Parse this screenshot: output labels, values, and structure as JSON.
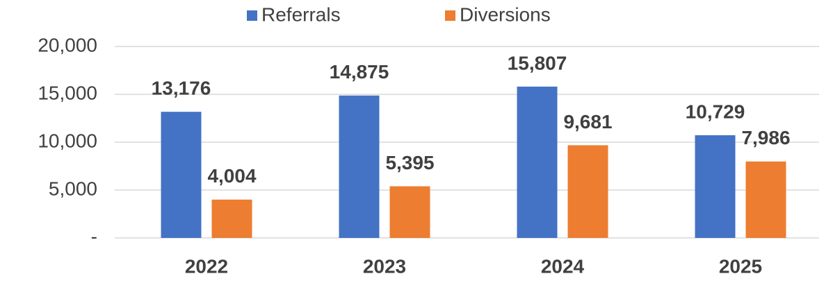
{
  "chart_data": {
    "type": "bar",
    "categories": [
      "2022",
      "2023",
      "2024",
      "2025"
    ],
    "series": [
      {
        "name": "Referrals",
        "color": "#4472c4",
        "values": [
          13176,
          14875,
          15807,
          10729
        ],
        "value_labels": [
          "13,176",
          "14,875",
          "15,807",
          "10,729"
        ]
      },
      {
        "name": "Diversions",
        "color": "#ed7d31",
        "values": [
          4004,
          5395,
          9681,
          7986
        ],
        "value_labels": [
          "4,004",
          "5,395",
          "9,681",
          "7,986"
        ]
      }
    ],
    "ylim": [
      0,
      20000
    ],
    "yticks": [
      {
        "value": 0,
        "label": "-"
      },
      {
        "value": 5000,
        "label": "5,000"
      },
      {
        "value": 10000,
        "label": "10,000"
      },
      {
        "value": 15000,
        "label": "15,000"
      },
      {
        "value": 20000,
        "label": "20,000"
      }
    ],
    "grid": true,
    "legend": "top"
  }
}
